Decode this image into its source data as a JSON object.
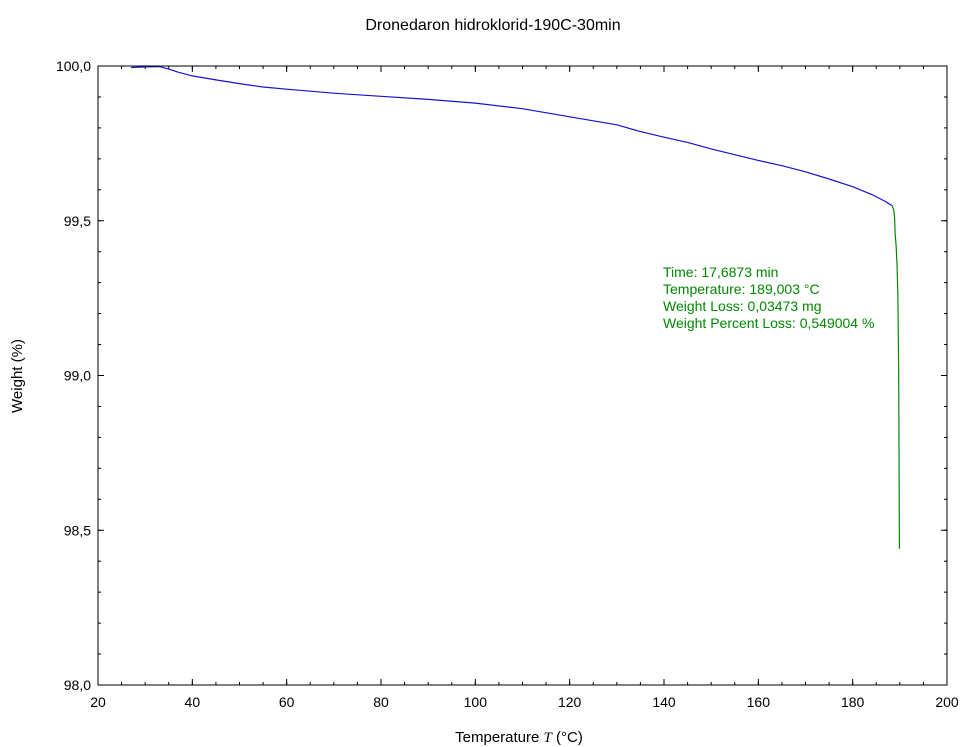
{
  "chart_data": {
    "type": "line",
    "title": "Dronedaron hidroklorid-190C-30min",
    "xlabel": {
      "prefix": "Temperature ",
      "symbol": "T",
      "suffix": " (°C)"
    },
    "ylabel": "Weight  (%)",
    "xlim": [
      20,
      200
    ],
    "ylim": [
      98.0,
      100.0
    ],
    "xticks": [
      20,
      40,
      60,
      80,
      100,
      120,
      140,
      160,
      180,
      200
    ],
    "xtick_labels": [
      "20",
      "40",
      "60",
      "80",
      "100",
      "120",
      "140",
      "160",
      "180",
      "200"
    ],
    "yticks": [
      98.0,
      98.5,
      99.0,
      99.5,
      100.0
    ],
    "ytick_labels": [
      "98,0",
      "98,5",
      "99,0",
      "99,5",
      "100,0"
    ],
    "x_minor_step": 5,
    "y_minor_step": 0.1,
    "grid": false,
    "legend": "none",
    "series": [
      {
        "color": "#1414cc",
        "x": [
          27,
          30,
          33,
          35,
          37,
          40,
          45,
          50,
          55,
          60,
          70,
          80,
          90,
          100,
          110,
          120,
          130,
          135,
          140,
          145,
          150,
          160,
          165,
          170,
          175,
          180,
          184,
          187,
          188.4
        ],
        "y": [
          99.995,
          99.997,
          99.998,
          99.99,
          99.98,
          99.968,
          99.955,
          99.943,
          99.932,
          99.925,
          99.912,
          99.902,
          99.892,
          99.88,
          99.862,
          99.836,
          99.81,
          99.788,
          99.77,
          99.753,
          99.732,
          99.695,
          99.678,
          99.658,
          99.635,
          99.61,
          99.585,
          99.562,
          99.548
        ]
      },
      {
        "color": "#008800",
        "x": [
          188.4,
          188.7,
          188.9,
          189.0,
          189.2,
          189.4,
          189.6,
          189.75,
          189.85,
          189.9
        ],
        "y": [
          99.548,
          99.535,
          99.51,
          99.46,
          99.42,
          99.36,
          99.26,
          99.0,
          98.7,
          98.44
        ]
      }
    ],
    "annotation": {
      "color": "#008800",
      "lines": [
        "Time: 17,6873 min",
        "Temperature: 189,003 °C",
        "Weight Loss: 0,03473 mg",
        "Weight Percent Loss: 0,549004 %"
      ]
    }
  }
}
